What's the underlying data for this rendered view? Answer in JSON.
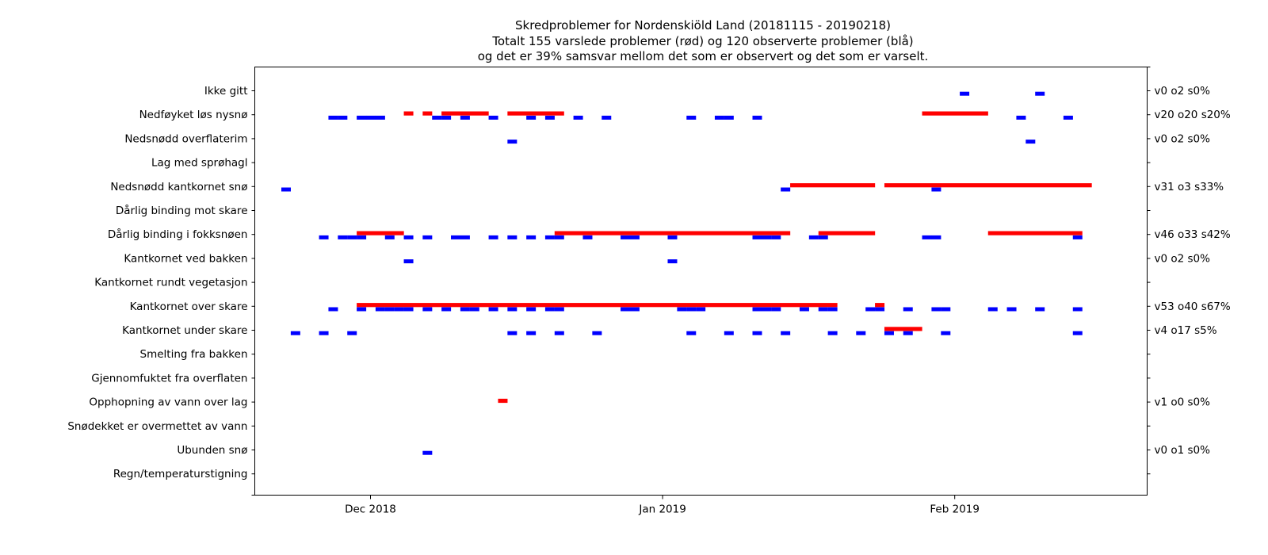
{
  "figure": {
    "title_lines": [
      "Skredproblemer for Nordenskiöld Land (20181115 - 20190218)",
      "Totalt 155 varslede problemer (rød) og 120 observerte problemer (blå)",
      "og det er 39% samsvar mellom det som er observert og det som er varselt."
    ]
  },
  "chart_data": {
    "type": "timeline",
    "title": "Skredproblemer for Nordenskiöld Land (20181115 - 20190218)\nTotalt 155 varslede problemer (rød) og 120 observerte problemer (blå)\nog det er 39% samsvar mellom det som er observert og det som er varselt.",
    "xlabel": "",
    "ylabel": "",
    "x_range": [
      "2018-11-18",
      "2019-02-23"
    ],
    "x_ticks": [
      {
        "date": "2018-12-01",
        "label": "Dec 2018"
      },
      {
        "date": "2019-01-01",
        "label": "Jan 2019"
      },
      {
        "date": "2019-02-01",
        "label": "Feb 2019"
      }
    ],
    "colors": {
      "forecast": "#ff0000",
      "observed": "#0000ff"
    },
    "problems": [
      "Ikke gitt",
      "Nedføyket løs nysnø",
      "Nedsnødd overflaterim",
      "Lag med sprøhagl",
      "Nedsnødd kantkornet snø",
      "Dårlig binding mot skare",
      "Dårlig binding i fokksnøen",
      "Kantkornet ved bakken",
      "Kantkornet rundt vegetasjon",
      "Kantkornet over skare",
      "Kantkornet under skare",
      "Smelting fra bakken",
      "Gjennomfuktet fra overflaten",
      "Opphopning av vann over lag",
      "Snødekket er overmettet av vann",
      "Ubunden snø",
      "Regn/temperaturstigning"
    ],
    "right_labels": [
      "v0 o2 s0%",
      "v20 o20 s20%",
      "v0 o2 s0%",
      "",
      "v31 o3 s33%",
      "",
      "v46 o33 s42%",
      "v0 o2 s0%",
      "",
      "v53 o40 s67%",
      "v4 o17 s5%",
      "",
      "",
      "v1 o0 s0%",
      "",
      "v0 o1 s0%",
      ""
    ],
    "forecast": [
      {
        "problem": 1,
        "start": "2018-12-05",
        "end": "2018-12-05"
      },
      {
        "problem": 1,
        "start": "2018-12-07",
        "end": "2018-12-07"
      },
      {
        "problem": 1,
        "start": "2018-12-09",
        "end": "2018-12-13"
      },
      {
        "problem": 1,
        "start": "2018-12-16",
        "end": "2018-12-21"
      },
      {
        "problem": 1,
        "start": "2019-01-29",
        "end": "2019-02-04"
      },
      {
        "problem": 4,
        "start": "2019-01-15",
        "end": "2019-01-23"
      },
      {
        "problem": 4,
        "start": "2019-01-25",
        "end": "2019-02-15"
      },
      {
        "problem": 6,
        "start": "2018-11-30",
        "end": "2018-12-04"
      },
      {
        "problem": 6,
        "start": "2018-12-21",
        "end": "2019-01-14"
      },
      {
        "problem": 6,
        "start": "2019-01-18",
        "end": "2019-01-23"
      },
      {
        "problem": 6,
        "start": "2019-02-05",
        "end": "2019-02-14"
      },
      {
        "problem": 9,
        "start": "2018-11-30",
        "end": "2019-01-19"
      },
      {
        "problem": 9,
        "start": "2019-01-24",
        "end": "2019-01-24"
      },
      {
        "problem": 10,
        "start": "2019-01-25",
        "end": "2019-01-28"
      },
      {
        "problem": 13,
        "start": "2018-12-15",
        "end": "2018-12-15"
      }
    ],
    "observed": [
      {
        "problem": 0,
        "date": "2019-02-02"
      },
      {
        "problem": 0,
        "date": "2019-02-10"
      },
      {
        "problem": 1,
        "date": "2018-11-27"
      },
      {
        "problem": 1,
        "date": "2018-11-28"
      },
      {
        "problem": 1,
        "date": "2018-11-30"
      },
      {
        "problem": 1,
        "date": "2018-12-01"
      },
      {
        "problem": 1,
        "date": "2018-12-02"
      },
      {
        "problem": 1,
        "date": "2018-12-08"
      },
      {
        "problem": 1,
        "date": "2018-12-09"
      },
      {
        "problem": 1,
        "date": "2018-12-11"
      },
      {
        "problem": 1,
        "date": "2018-12-14"
      },
      {
        "problem": 1,
        "date": "2018-12-18"
      },
      {
        "problem": 1,
        "date": "2018-12-20"
      },
      {
        "problem": 1,
        "date": "2018-12-23"
      },
      {
        "problem": 1,
        "date": "2018-12-26"
      },
      {
        "problem": 1,
        "date": "2019-01-04"
      },
      {
        "problem": 1,
        "date": "2019-01-07"
      },
      {
        "problem": 1,
        "date": "2019-01-08"
      },
      {
        "problem": 1,
        "date": "2019-01-11"
      },
      {
        "problem": 1,
        "date": "2019-02-08"
      },
      {
        "problem": 1,
        "date": "2019-02-13"
      },
      {
        "problem": 2,
        "date": "2018-12-16"
      },
      {
        "problem": 2,
        "date": "2019-02-09"
      },
      {
        "problem": 4,
        "date": "2018-11-22"
      },
      {
        "problem": 4,
        "date": "2019-01-14"
      },
      {
        "problem": 4,
        "date": "2019-01-30"
      },
      {
        "problem": 6,
        "date": "2018-11-26"
      },
      {
        "problem": 6,
        "date": "2018-11-28"
      },
      {
        "problem": 6,
        "date": "2018-11-29"
      },
      {
        "problem": 6,
        "date": "2018-11-30"
      },
      {
        "problem": 6,
        "date": "2018-12-03"
      },
      {
        "problem": 6,
        "date": "2018-12-05"
      },
      {
        "problem": 6,
        "date": "2018-12-07"
      },
      {
        "problem": 6,
        "date": "2018-12-10"
      },
      {
        "problem": 6,
        "date": "2018-12-11"
      },
      {
        "problem": 6,
        "date": "2018-12-14"
      },
      {
        "problem": 6,
        "date": "2018-12-16"
      },
      {
        "problem": 6,
        "date": "2018-12-18"
      },
      {
        "problem": 6,
        "date": "2018-12-20"
      },
      {
        "problem": 6,
        "date": "2018-12-21"
      },
      {
        "problem": 6,
        "date": "2018-12-24"
      },
      {
        "problem": 6,
        "date": "2018-12-28"
      },
      {
        "problem": 6,
        "date": "2018-12-29"
      },
      {
        "problem": 6,
        "date": "2019-01-02"
      },
      {
        "problem": 6,
        "date": "2019-01-11"
      },
      {
        "problem": 6,
        "date": "2019-01-12"
      },
      {
        "problem": 6,
        "date": "2019-01-13"
      },
      {
        "problem": 6,
        "date": "2019-01-17"
      },
      {
        "problem": 6,
        "date": "2019-01-18"
      },
      {
        "problem": 6,
        "date": "2019-01-29"
      },
      {
        "problem": 6,
        "date": "2019-01-30"
      },
      {
        "problem": 6,
        "date": "2019-02-14"
      },
      {
        "problem": 7,
        "date": "2018-12-05"
      },
      {
        "problem": 7,
        "date": "2019-01-02"
      },
      {
        "problem": 9,
        "date": "2018-11-27"
      },
      {
        "problem": 9,
        "date": "2018-11-30"
      },
      {
        "problem": 9,
        "date": "2018-12-02"
      },
      {
        "problem": 9,
        "date": "2018-12-03"
      },
      {
        "problem": 9,
        "date": "2018-12-04"
      },
      {
        "problem": 9,
        "date": "2018-12-05"
      },
      {
        "problem": 9,
        "date": "2018-12-07"
      },
      {
        "problem": 9,
        "date": "2018-12-09"
      },
      {
        "problem": 9,
        "date": "2018-12-11"
      },
      {
        "problem": 9,
        "date": "2018-12-12"
      },
      {
        "problem": 9,
        "date": "2018-12-14"
      },
      {
        "problem": 9,
        "date": "2018-12-16"
      },
      {
        "problem": 9,
        "date": "2018-12-18"
      },
      {
        "problem": 9,
        "date": "2018-12-20"
      },
      {
        "problem": 9,
        "date": "2018-12-21"
      },
      {
        "problem": 9,
        "date": "2018-12-28"
      },
      {
        "problem": 9,
        "date": "2018-12-29"
      },
      {
        "problem": 9,
        "date": "2019-01-03"
      },
      {
        "problem": 9,
        "date": "2019-01-04"
      },
      {
        "problem": 9,
        "date": "2019-01-05"
      },
      {
        "problem": 9,
        "date": "2019-01-11"
      },
      {
        "problem": 9,
        "date": "2019-01-12"
      },
      {
        "problem": 9,
        "date": "2019-01-13"
      },
      {
        "problem": 9,
        "date": "2019-01-16"
      },
      {
        "problem": 9,
        "date": "2019-01-18"
      },
      {
        "problem": 9,
        "date": "2019-01-19"
      },
      {
        "problem": 9,
        "date": "2019-01-23"
      },
      {
        "problem": 9,
        "date": "2019-01-24"
      },
      {
        "problem": 9,
        "date": "2019-01-27"
      },
      {
        "problem": 9,
        "date": "2019-01-30"
      },
      {
        "problem": 9,
        "date": "2019-01-31"
      },
      {
        "problem": 9,
        "date": "2019-02-05"
      },
      {
        "problem": 9,
        "date": "2019-02-07"
      },
      {
        "problem": 9,
        "date": "2019-02-10"
      },
      {
        "problem": 9,
        "date": "2019-02-14"
      },
      {
        "problem": 10,
        "date": "2018-11-23"
      },
      {
        "problem": 10,
        "date": "2018-11-26"
      },
      {
        "problem": 10,
        "date": "2018-11-29"
      },
      {
        "problem": 10,
        "date": "2018-12-16"
      },
      {
        "problem": 10,
        "date": "2018-12-18"
      },
      {
        "problem": 10,
        "date": "2018-12-21"
      },
      {
        "problem": 10,
        "date": "2018-12-25"
      },
      {
        "problem": 10,
        "date": "2019-01-04"
      },
      {
        "problem": 10,
        "date": "2019-01-08"
      },
      {
        "problem": 10,
        "date": "2019-01-11"
      },
      {
        "problem": 10,
        "date": "2019-01-14"
      },
      {
        "problem": 10,
        "date": "2019-01-19"
      },
      {
        "problem": 10,
        "date": "2019-01-22"
      },
      {
        "problem": 10,
        "date": "2019-01-25"
      },
      {
        "problem": 10,
        "date": "2019-01-27"
      },
      {
        "problem": 10,
        "date": "2019-01-31"
      },
      {
        "problem": 10,
        "date": "2019-02-14"
      },
      {
        "problem": 15,
        "date": "2018-12-07"
      }
    ]
  }
}
